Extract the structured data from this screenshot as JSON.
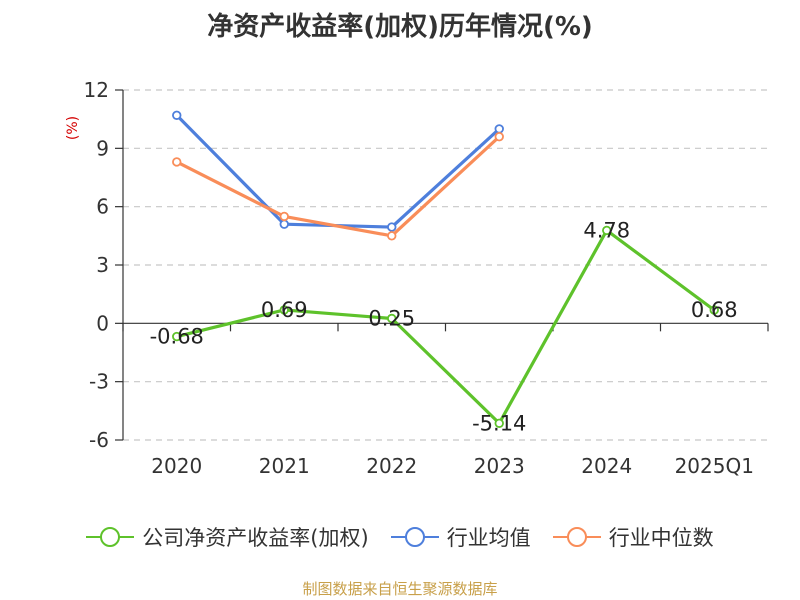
{
  "title": "净资产收益率(加权)历年情况(%)",
  "source": "制图数据来自恒生聚源数据库",
  "chart_data": {
    "type": "line",
    "title": "净资产收益率(加权)历年情况(%)",
    "ylabel": "(%)",
    "xlabel": "",
    "categories": [
      "2020",
      "2021",
      "2022",
      "2023",
      "2024",
      "2025Q1"
    ],
    "ylim": [
      -6,
      12
    ],
    "yticks": [
      12,
      9,
      6,
      3,
      0,
      -3,
      -6
    ],
    "grid": true,
    "legend_position": "bottom",
    "series": [
      {
        "name": "公司净资产收益率(加权)",
        "color": "#5ec22b",
        "values": [
          -0.68,
          0.69,
          0.25,
          -5.14,
          4.78,
          0.68
        ],
        "labels": [
          "-0.68",
          "0.69",
          "0.25",
          "-5.14",
          "4.78",
          "0.68"
        ]
      },
      {
        "name": "行业均值",
        "color": "#4e7fdc",
        "values": [
          10.7,
          5.1,
          4.95,
          10.0,
          null,
          null
        ]
      },
      {
        "name": "行业中位数",
        "color": "#f98d59",
        "values": [
          8.3,
          5.5,
          4.5,
          9.6,
          null,
          null
        ]
      }
    ]
  }
}
